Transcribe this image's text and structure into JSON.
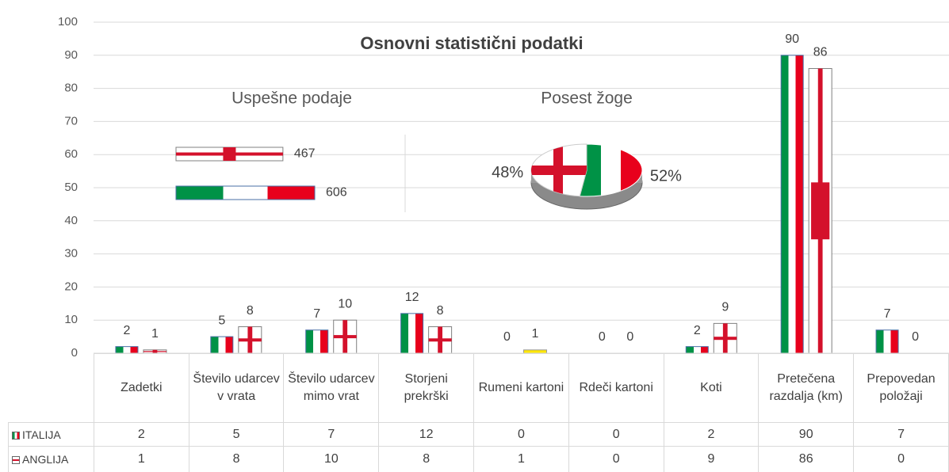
{
  "chart_data": [
    {
      "type": "bar",
      "title": "Osnovni statistični podatki",
      "categories": [
        "Zadetki",
        "Število udarcev v vrata",
        "Število udarcev mimo vrat",
        "Storjeni prekrški",
        "Rumeni kartoni",
        "Rdeči kartoni",
        "Koti",
        "Pretečena razdalja (km)",
        "Prepovedan položaji"
      ],
      "series": [
        {
          "name": "ITALIJA",
          "colors": [
            "#009246",
            "#ffffff",
            "#e8001c"
          ],
          "values": [
            2,
            5,
            7,
            12,
            0,
            0,
            2,
            90,
            7
          ]
        },
        {
          "name": "ANGLIJA",
          "color": "#d4112b",
          "point_colors": {
            "4": "#ffe600"
          },
          "values": [
            1,
            8,
            10,
            8,
            1,
            0,
            9,
            86,
            0
          ]
        }
      ],
      "ylim": [
        0,
        100
      ],
      "yticks": [
        0,
        10,
        20,
        30,
        40,
        50,
        60,
        70,
        80,
        90,
        100
      ],
      "grid": true,
      "data_table": true
    },
    {
      "type": "hbar",
      "title": "Uspešne podaje",
      "series": [
        {
          "name": "ANGLIJA",
          "values": [
            467
          ]
        },
        {
          "name": "ITALIJA",
          "values": [
            606
          ]
        }
      ]
    },
    {
      "type": "pie",
      "title": "Posest žoge",
      "series": [
        {
          "name": "ITALIJA",
          "values": [
            52
          ],
          "value_labels": [
            "52%"
          ]
        },
        {
          "name": "ANGLIJA",
          "values": [
            48
          ],
          "value_labels": [
            "48%"
          ]
        }
      ]
    }
  ]
}
